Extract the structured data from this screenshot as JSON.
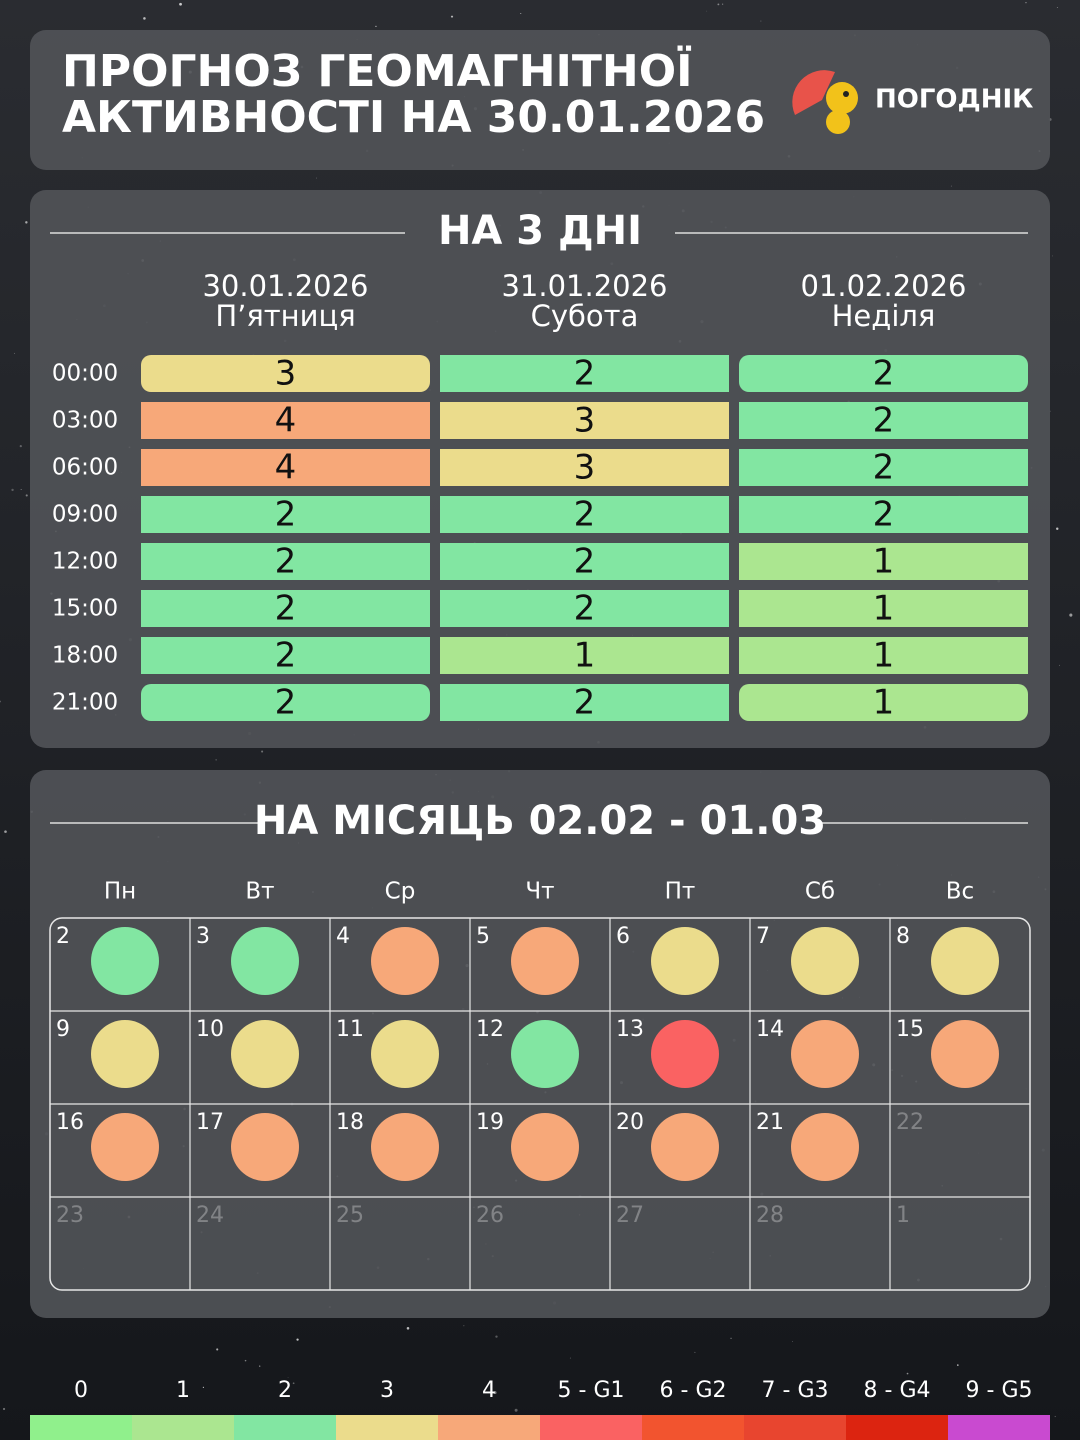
{
  "header": {
    "title": [
      "ПРОГНОЗ ГЕОМАГНІТНОЇ",
      "АКТИВНОСТІ НА 30.01.2026"
    ],
    "logo": "ПОГОДНІК"
  },
  "forecast": {
    "heading": "НА 3 ДНІ",
    "days": [
      {
        "date": "30.01.2026",
        "weekday": "П’ятниця"
      },
      {
        "date": "31.01.2026",
        "weekday": "Субота"
      },
      {
        "date": "01.02.2026",
        "weekday": "Неділя"
      }
    ],
    "rows": [
      {
        "time": "00:00",
        "values": [
          3,
          2,
          2
        ]
      },
      {
        "time": "03:00",
        "values": [
          4,
          3,
          2
        ]
      },
      {
        "time": "06:00",
        "values": [
          4,
          3,
          2
        ]
      },
      {
        "time": "09:00",
        "values": [
          2,
          2,
          2
        ]
      },
      {
        "time": "12:00",
        "values": [
          2,
          2,
          1
        ]
      },
      {
        "time": "15:00",
        "values": [
          2,
          2,
          1
        ]
      },
      {
        "time": "18:00",
        "values": [
          2,
          1,
          1
        ]
      },
      {
        "time": "21:00",
        "values": [
          2,
          2,
          1
        ]
      }
    ]
  },
  "month": {
    "heading": "НА МІСЯЦЬ 02.02 - 01.03",
    "weekdays": [
      "Пн",
      "Вт",
      "Ср",
      "Чт",
      "Пт",
      "Сб",
      "Вс"
    ],
    "days": [
      {
        "label": 2,
        "level": 2
      },
      {
        "label": 3,
        "level": 2
      },
      {
        "label": 4,
        "level": 4
      },
      {
        "label": 5,
        "level": 4
      },
      {
        "label": 6,
        "level": 3
      },
      {
        "label": 7,
        "level": 3
      },
      {
        "label": 8,
        "level": 3
      },
      {
        "label": 9,
        "level": 3
      },
      {
        "label": 10,
        "level": 3
      },
      {
        "label": 11,
        "level": 3
      },
      {
        "label": 12,
        "level": 2
      },
      {
        "label": 13,
        "level": 5
      },
      {
        "label": 14,
        "level": 4
      },
      {
        "label": 15,
        "level": 4
      },
      {
        "label": 16,
        "level": 4
      },
      {
        "label": 17,
        "level": 4
      },
      {
        "label": 18,
        "level": 4
      },
      {
        "label": 19,
        "level": 4
      },
      {
        "label": 20,
        "level": 4
      },
      {
        "label": 21,
        "level": 4
      },
      {
        "label": 22,
        "level": null
      },
      {
        "label": 23,
        "level": null
      },
      {
        "label": 24,
        "level": null
      },
      {
        "label": 25,
        "level": null
      },
      {
        "label": 26,
        "level": null
      },
      {
        "label": 27,
        "level": null
      },
      {
        "label": 28,
        "level": null
      },
      {
        "label": 1,
        "level": null
      }
    ]
  },
  "scale": [
    {
      "label": "0",
      "color": "#90f08c"
    },
    {
      "label": "1",
      "color": "#abe690"
    },
    {
      "label": "2",
      "color": "#82e6a2"
    },
    {
      "label": "3",
      "color": "#ebdc8c"
    },
    {
      "label": "4",
      "color": "#f7a879"
    },
    {
      "label": "5 - G1",
      "color": "#fa6262"
    },
    {
      "label": "6 - G2",
      "color": "#f2542f"
    },
    {
      "label": "7 - G3",
      "color": "#e8452f"
    },
    {
      "label": "8 - G4",
      "color": "#dc2410"
    },
    {
      "label": "9 - G5",
      "color": "#c94ad0"
    }
  ]
}
